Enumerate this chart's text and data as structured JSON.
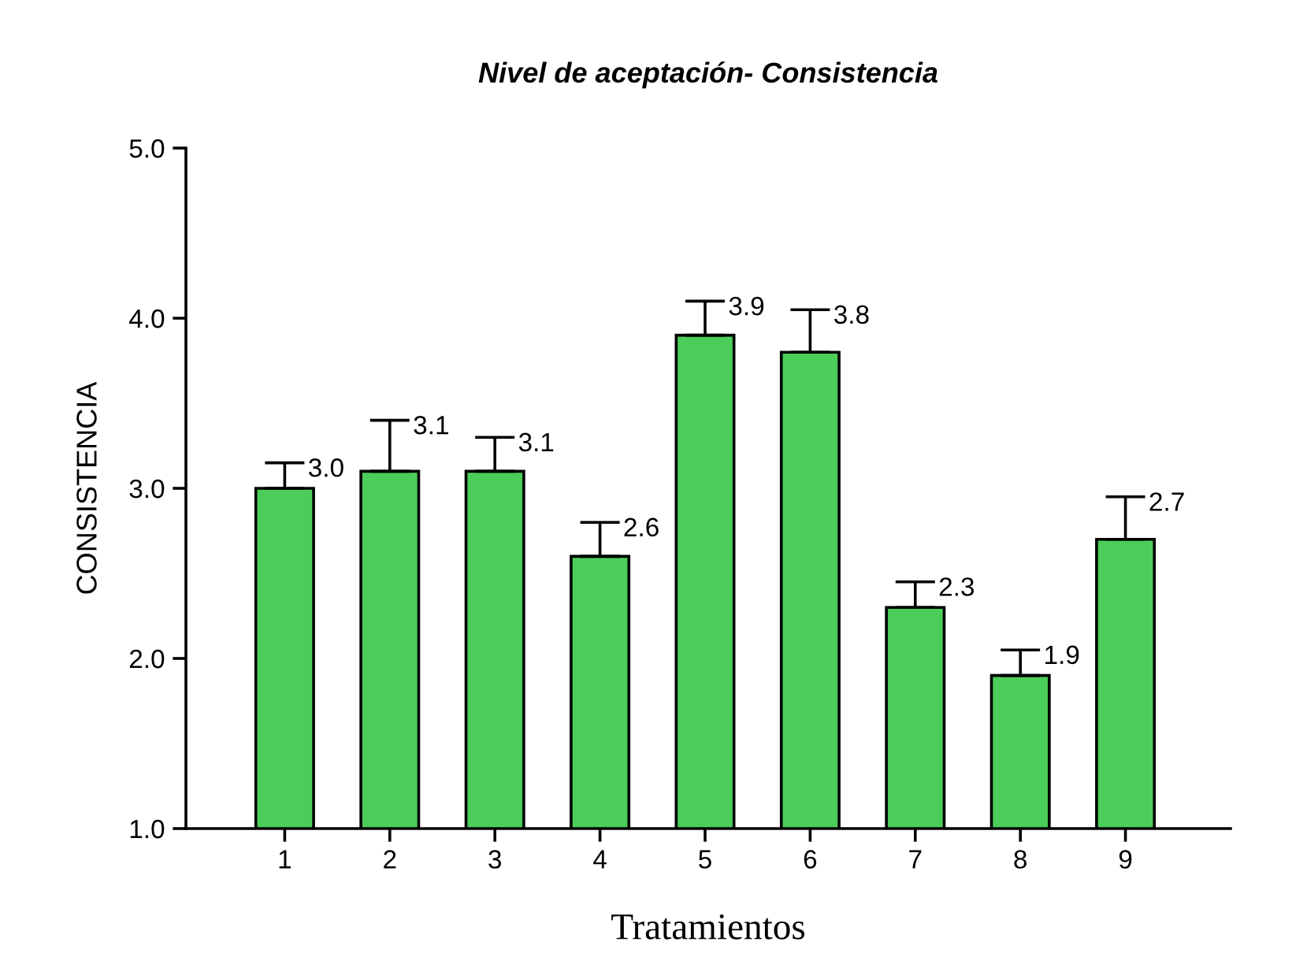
{
  "chart_data": {
    "type": "bar",
    "title": "Nivel de aceptación- Consistencia",
    "xlabel": "Tratamientos",
    "ylabel": "CONSISTENCIA",
    "categories": [
      "1",
      "2",
      "3",
      "4",
      "5",
      "6",
      "7",
      "8",
      "9"
    ],
    "values": [
      3.0,
      3.1,
      3.1,
      2.6,
      3.9,
      3.8,
      2.3,
      1.9,
      2.7
    ],
    "errors": [
      0.15,
      0.3,
      0.2,
      0.2,
      0.2,
      0.25,
      0.15,
      0.15,
      0.25
    ],
    "value_labels": [
      "3.0",
      "3.1",
      "3.1",
      "2.6",
      "3.9",
      "3.8",
      "2.3",
      "1.9",
      "2.7"
    ],
    "color": "#4ccd5a",
    "grid": false,
    "legend": false,
    "ylim": [
      1.0,
      5.0
    ],
    "yticks": [
      {
        "value": 1,
        "label": "1.0"
      },
      {
        "value": 2,
        "label": "2.0"
      },
      {
        "value": 3,
        "label": "3.0"
      },
      {
        "value": 4,
        "label": "4.0"
      },
      {
        "value": 5,
        "label": "5.0"
      }
    ]
  }
}
